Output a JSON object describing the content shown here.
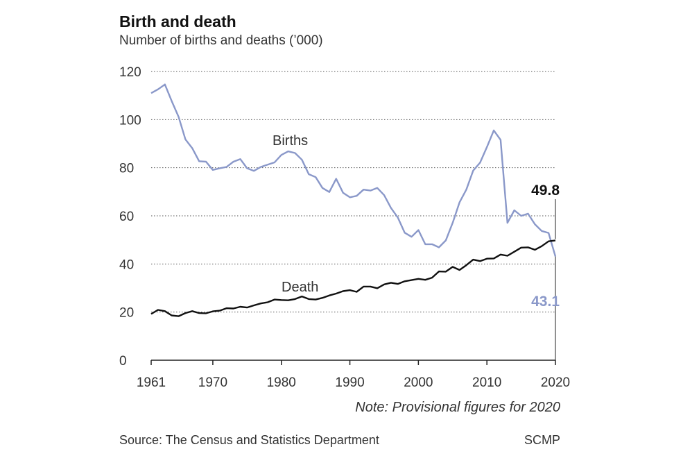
{
  "header": {
    "title": "Birth and death",
    "subtitle": "Number of births and deaths (’000)"
  },
  "footer": {
    "note": "Note: Provisional figures for 2020",
    "source": "Source: The Census and Statistics Department",
    "brand": "SCMP"
  },
  "colors": {
    "births": "#8a98c9",
    "death": "#111111",
    "grid": "#555555"
  },
  "chart_data": {
    "type": "line",
    "title": "Birth and death",
    "subtitle": "Number of births and deaths (’000)",
    "xlabel": "",
    "ylabel": "",
    "xlim": [
      1961,
      2020
    ],
    "ylim": [
      0,
      120
    ],
    "yticks": [
      0,
      20,
      40,
      60,
      80,
      100,
      120
    ],
    "xticks": [
      1961,
      1970,
      1980,
      1990,
      2000,
      2010,
      2020
    ],
    "grid": "horizontal dotted",
    "x": [
      1961,
      1962,
      1963,
      1964,
      1965,
      1966,
      1967,
      1968,
      1969,
      1970,
      1971,
      1972,
      1973,
      1974,
      1975,
      1976,
      1977,
      1978,
      1979,
      1980,
      1981,
      1982,
      1983,
      1984,
      1985,
      1986,
      1987,
      1988,
      1989,
      1990,
      1991,
      1992,
      1993,
      1994,
      1995,
      1996,
      1997,
      1998,
      1999,
      2000,
      2001,
      2002,
      2003,
      2004,
      2005,
      2006,
      2007,
      2008,
      2009,
      2010,
      2011,
      2012,
      2013,
      2014,
      2015,
      2016,
      2017,
      2018,
      2019,
      2020
    ],
    "series": [
      {
        "name": "Births",
        "color": "#8a98c9",
        "values": [
          111.0,
          112.6,
          114.6,
          107.7,
          101.2,
          91.8,
          88.1,
          82.7,
          82.5,
          79.1,
          79.8,
          80.3,
          82.5,
          83.6,
          79.8,
          78.7,
          80.3,
          81.3,
          82.2,
          85.3,
          86.8,
          86.1,
          83.3,
          77.3,
          76.1,
          71.6,
          69.9,
          75.4,
          69.6,
          67.7,
          68.3,
          70.9,
          70.5,
          71.6,
          68.6,
          63.3,
          59.3,
          53.0,
          51.3,
          54.1,
          48.2,
          48.2,
          46.9,
          49.8,
          57.1,
          65.6,
          70.9,
          78.8,
          82.1,
          88.6,
          95.5,
          91.6,
          57.1,
          62.3,
          60.0,
          60.9,
          56.5,
          53.7,
          52.9,
          43.1
        ]
      },
      {
        "name": "Death",
        "color": "#111111",
        "values": [
          19.2,
          20.9,
          20.4,
          18.6,
          18.3,
          19.6,
          20.4,
          19.6,
          19.5,
          20.3,
          20.6,
          21.6,
          21.5,
          22.2,
          21.9,
          22.8,
          23.6,
          24.1,
          25.2,
          25.0,
          24.9,
          25.4,
          26.5,
          25.4,
          25.2,
          25.9,
          26.9,
          27.7,
          28.7,
          29.1,
          28.4,
          30.6,
          30.6,
          29.9,
          31.5,
          32.2,
          31.7,
          32.8,
          33.3,
          33.8,
          33.4,
          34.3,
          36.9,
          36.8,
          38.8,
          37.5,
          39.5,
          41.8,
          41.2,
          42.2,
          42.3,
          43.9,
          43.4,
          45.1,
          46.8,
          46.9,
          45.9,
          47.4,
          49.4,
          49.8
        ]
      }
    ],
    "annotations": {
      "births_label": "Births",
      "death_label": "Death",
      "death_end_value": "49.8",
      "births_end_value": "43.1"
    }
  }
}
